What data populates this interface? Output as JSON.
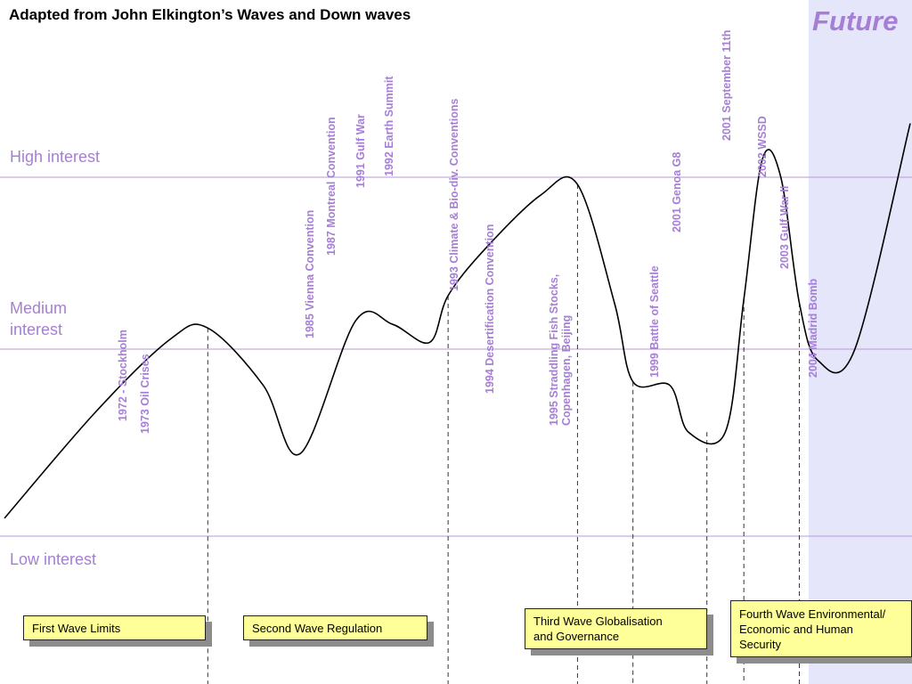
{
  "title": "Adapted from John Elkington’s Waves and Down waves",
  "future_label": "Future",
  "interest_levels": {
    "high": "High interest",
    "medium": "Medium\ninterest",
    "low": "Low interest"
  },
  "events": [
    {
      "label": "1972 - Stockholm",
      "year": 1972
    },
    {
      "label": "1973 Oil Crises",
      "year": 1973
    },
    {
      "label": "1985 Vienna Convention",
      "year": 1985
    },
    {
      "label": "1987 Montreal Convention",
      "year": 1987
    },
    {
      "label": "1991 Gulf War",
      "year": 1991
    },
    {
      "label": "1992 Earth Summit",
      "year": 1992
    },
    {
      "label": "1993 Climate & Bio-div. Conventions",
      "year": 1993
    },
    {
      "label": "1994 Desertification Convention",
      "year": 1994
    },
    {
      "label": "1995 Straddling Fish Stocks,\nCopenhagen, Beijing",
      "year": 1995
    },
    {
      "label": "1999 Battle of Seattle",
      "year": 1999
    },
    {
      "label": "2001 Genoa G8",
      "year": 2001
    },
    {
      "label": "2001 September 11th",
      "year": 2001
    },
    {
      "label": "2002 WSSD",
      "year": 2002
    },
    {
      "label": "2003 Gulf War II",
      "year": 2003
    },
    {
      "label": "2004 Madrid Bomb",
      "year": 2004
    }
  ],
  "waves": [
    {
      "label": "First Wave Limits"
    },
    {
      "label": "Second Wave Regulation"
    },
    {
      "label": "Third Wave Globalisation\nand Governance"
    },
    {
      "label": "Fourth Wave Environmental/\nEconomic  and Human\nSecurity"
    }
  ],
  "colors": {
    "accent": "#a57fd6",
    "future_band": "#e6e6fa",
    "box_fill": "#ffff99",
    "curve": "#000000",
    "guide_line": "#b79ad9"
  },
  "chart_data": {
    "type": "line",
    "title": "Adapted from John Elkington’s Waves and Down waves",
    "xlabel": "",
    "ylabel": "",
    "y_scale": "qualitative: low / medium / high interest",
    "grid": false,
    "ylim": [
      0,
      1
    ],
    "reference_levels": [
      {
        "name": "Low interest",
        "y": 0.0
      },
      {
        "name": "Medium interest",
        "y": 0.5
      },
      {
        "name": "High interest",
        "y": 1.0
      }
    ],
    "series": [
      {
        "x": [
          1961,
          1966,
          1970,
          1972,
          1975,
          1977,
          1980,
          1982,
          1984,
          1985,
          1987,
          1990,
          1992,
          1994,
          1995,
          1997,
          1998,
          2000,
          2001,
          2002,
          2003,
          2004,
          2005,
          2007,
          2010
        ],
        "y": [
          0.05,
          0.35,
          0.55,
          0.58,
          0.42,
          0.23,
          0.6,
          0.59,
          0.54,
          0.67,
          0.8,
          0.95,
          0.98,
          0.65,
          0.43,
          0.42,
          0.29,
          0.29,
          0.66,
          1.05,
          1.0,
          0.65,
          0.49,
          0.52,
          1.15
        ]
      }
    ],
    "markers": [
      1972,
      1985,
      1992,
      1995,
      1999,
      2001,
      2004
    ],
    "future_region_start": 2004
  }
}
